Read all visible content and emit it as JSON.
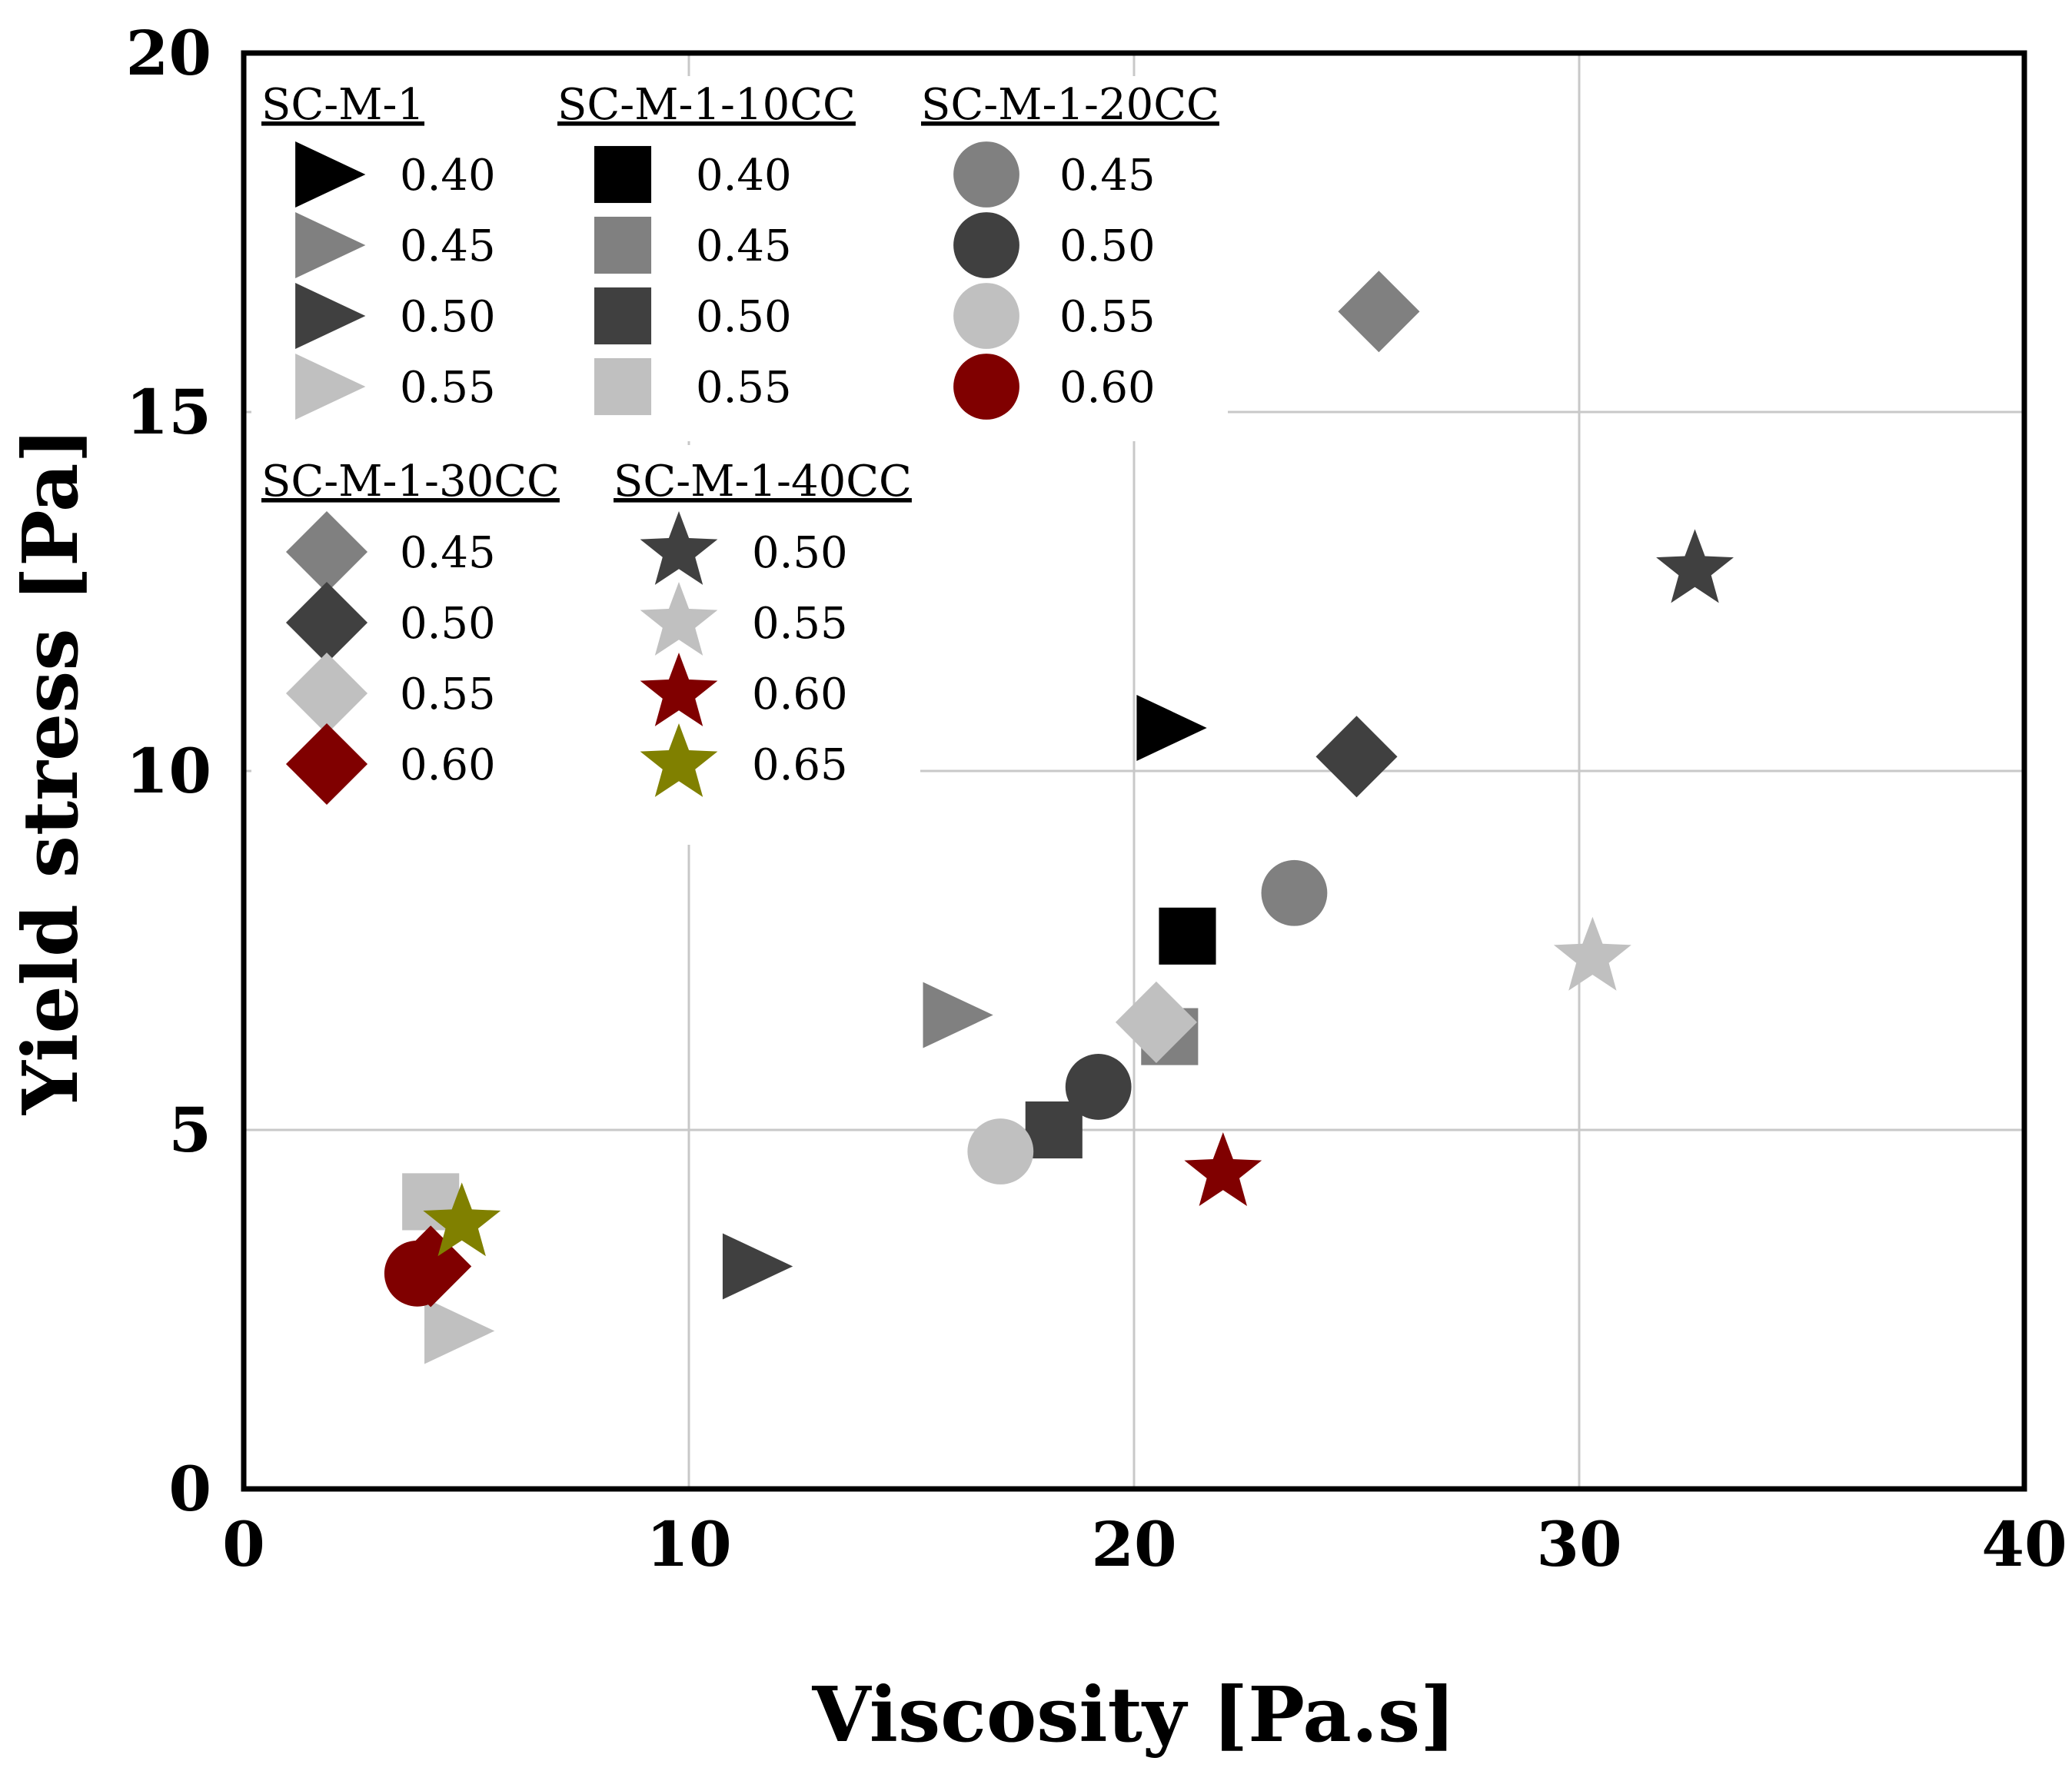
{
  "chart_data": {
    "type": "scatter",
    "xlabel": "Viscosity [Pa.s]",
    "ylabel": "Yield stress [Pa]",
    "xlim": [
      0,
      40
    ],
    "ylim": [
      0,
      20
    ],
    "xticks": [
      "0",
      "10",
      "20",
      "30",
      "40"
    ],
    "yticks": [
      "0",
      "5",
      "10",
      "15",
      "20"
    ],
    "grid": true,
    "colors": {
      "black": "#000000",
      "dark": "#404040",
      "mid": "#808080",
      "light": "#c0c0c0",
      "red": "#800000",
      "olive": "#808000"
    },
    "legend": [
      {
        "title": "SC-M-1",
        "marker": "triangle",
        "entries": [
          {
            "label": "0.40",
            "color": "#000000"
          },
          {
            "label": "0.45",
            "color": "#808080"
          },
          {
            "label": "0.50",
            "color": "#404040"
          },
          {
            "label": "0.55",
            "color": "#c0c0c0"
          }
        ]
      },
      {
        "title": "SC-M-1-10CC",
        "marker": "square",
        "entries": [
          {
            "label": "0.40",
            "color": "#000000"
          },
          {
            "label": "0.45",
            "color": "#808080"
          },
          {
            "label": "0.50",
            "color": "#404040"
          },
          {
            "label": "0.55",
            "color": "#c0c0c0"
          }
        ]
      },
      {
        "title": "SC-M-1-20CC",
        "marker": "circle",
        "entries": [
          {
            "label": "0.45",
            "color": "#808080"
          },
          {
            "label": "0.50",
            "color": "#404040"
          },
          {
            "label": "0.55",
            "color": "#c0c0c0"
          },
          {
            "label": "0.60",
            "color": "#800000"
          }
        ]
      },
      {
        "title": "SC-M-1-30CC",
        "marker": "diamond",
        "entries": [
          {
            "label": "0.45",
            "color": "#808080"
          },
          {
            "label": "0.50",
            "color": "#404040"
          },
          {
            "label": "0.55",
            "color": "#c0c0c0"
          },
          {
            "label": "0.60",
            "color": "#800000"
          }
        ]
      },
      {
        "title": "SC-M-1-40CC",
        "marker": "star",
        "entries": [
          {
            "label": "0.50",
            "color": "#404040"
          },
          {
            "label": "0.55",
            "color": "#c0c0c0"
          },
          {
            "label": "0.60",
            "color": "#800000"
          },
          {
            "label": "0.65",
            "color": "#808000"
          }
        ]
      }
    ],
    "series": [
      {
        "name": "SC-M-1 0.40",
        "marker": "triangle",
        "color": "#000000",
        "x": [
          20.8
        ],
        "y": [
          10.6
        ]
      },
      {
        "name": "SC-M-1 0.45",
        "marker": "triangle",
        "color": "#808080",
        "x": [
          16.0
        ],
        "y": [
          6.6
        ]
      },
      {
        "name": "SC-M-1 0.50",
        "marker": "triangle",
        "color": "#404040",
        "x": [
          11.5
        ],
        "y": [
          3.1
        ]
      },
      {
        "name": "SC-M-1 0.55",
        "marker": "triangle",
        "color": "#c0c0c0",
        "x": [
          4.8
        ],
        "y": [
          2.2
        ]
      },
      {
        "name": "SC-M-1-10CC 0.40",
        "marker": "square",
        "color": "#000000",
        "x": [
          21.2
        ],
        "y": [
          7.7
        ]
      },
      {
        "name": "SC-M-1-10CC 0.45",
        "marker": "square",
        "color": "#808080",
        "x": [
          20.8
        ],
        "y": [
          6.3
        ]
      },
      {
        "name": "SC-M-1-10CC 0.50",
        "marker": "square",
        "color": "#404040",
        "x": [
          18.2
        ],
        "y": [
          5.0
        ]
      },
      {
        "name": "SC-M-1-10CC 0.55",
        "marker": "square",
        "color": "#c0c0c0",
        "x": [
          4.2
        ],
        "y": [
          4.0
        ]
      },
      {
        "name": "SC-M-1-20CC 0.45",
        "marker": "circle",
        "color": "#808080",
        "x": [
          23.6
        ],
        "y": [
          8.3
        ]
      },
      {
        "name": "SC-M-1-20CC 0.50",
        "marker": "circle",
        "color": "#404040",
        "x": [
          19.2
        ],
        "y": [
          5.6
        ]
      },
      {
        "name": "SC-M-1-20CC 0.55",
        "marker": "circle",
        "color": "#c0c0c0",
        "x": [
          17.0
        ],
        "y": [
          4.7
        ]
      },
      {
        "name": "SC-M-1-20CC 0.60",
        "marker": "circle",
        "color": "#800000",
        "x": [
          3.9
        ],
        "y": [
          3.0
        ]
      },
      {
        "name": "SC-M-1-30CC 0.45",
        "marker": "diamond",
        "color": "#808080",
        "x": [
          25.5
        ],
        "y": [
          16.4
        ]
      },
      {
        "name": "SC-M-1-30CC 0.50",
        "marker": "diamond",
        "color": "#404040",
        "x": [
          25.0
        ],
        "y": [
          10.2
        ]
      },
      {
        "name": "SC-M-1-30CC 0.55",
        "marker": "diamond",
        "color": "#c0c0c0",
        "x": [
          20.5
        ],
        "y": [
          6.5
        ]
      },
      {
        "name": "SC-M-1-30CC 0.60",
        "marker": "diamond",
        "color": "#800000",
        "x": [
          4.2
        ],
        "y": [
          3.1
        ]
      },
      {
        "name": "SC-M-1-40CC 0.50",
        "marker": "star",
        "color": "#404040",
        "x": [
          32.6
        ],
        "y": [
          12.8
        ]
      },
      {
        "name": "SC-M-1-40CC 0.55",
        "marker": "star",
        "color": "#c0c0c0",
        "x": [
          30.3
        ],
        "y": [
          7.4
        ]
      },
      {
        "name": "SC-M-1-40CC 0.60",
        "marker": "star",
        "color": "#800000",
        "x": [
          22.0
        ],
        "y": [
          4.4
        ]
      },
      {
        "name": "SC-M-1-40CC 0.65",
        "marker": "star",
        "color": "#808000",
        "x": [
          4.9
        ],
        "y": [
          3.7
        ]
      }
    ]
  }
}
